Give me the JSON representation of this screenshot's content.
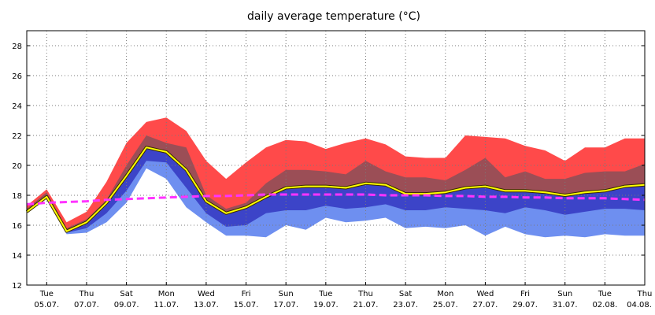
{
  "chart_data": {
    "type": "area",
    "title": "daily average temperature (°C)",
    "xlabel": "",
    "ylabel": "",
    "ylim": [
      12,
      29
    ],
    "yticks": [
      12,
      14,
      16,
      18,
      20,
      22,
      24,
      26,
      28
    ],
    "grid": true,
    "x": [
      "04.07.",
      "05.07.",
      "06.07.",
      "07.07.",
      "08.07.",
      "09.07.",
      "10.07.",
      "11.07.",
      "12.07.",
      "13.07.",
      "14.07.",
      "15.07.",
      "16.07.",
      "17.07.",
      "18.07.",
      "19.07.",
      "20.07.",
      "21.07.",
      "22.07.",
      "23.07.",
      "24.07.",
      "25.07.",
      "26.07.",
      "27.07.",
      "28.07.",
      "29.07.",
      "30.07.",
      "31.07.",
      "01.08.",
      "02.08.",
      "03.08.",
      "04.08."
    ],
    "x_tick_labels": [
      {
        "day": "Tue",
        "date": "05.07."
      },
      {
        "day": "Thu",
        "date": "07.07."
      },
      {
        "day": "Sat",
        "date": "09.07."
      },
      {
        "day": "Mon",
        "date": "11.07."
      },
      {
        "day": "Wed",
        "date": "13.07."
      },
      {
        "day": "Fri",
        "date": "15.07."
      },
      {
        "day": "Sun",
        "date": "17.07."
      },
      {
        "day": "Tue",
        "date": "19.07."
      },
      {
        "day": "Thu",
        "date": "21.07."
      },
      {
        "day": "Sat",
        "date": "23.07."
      },
      {
        "day": "Mon",
        "date": "25.07."
      },
      {
        "day": "Wed",
        "date": "27.07."
      },
      {
        "day": "Fri",
        "date": "29.07."
      },
      {
        "day": "Sun",
        "date": "31.07."
      },
      {
        "day": "Tue",
        "date": "02.08."
      },
      {
        "day": "Thu",
        "date": "04.08."
      }
    ],
    "bands": {
      "min": [
        16.8,
        17.8,
        15.4,
        15.5,
        16.2,
        17.5,
        19.8,
        19.1,
        17.2,
        16.2,
        15.3,
        15.3,
        15.2,
        16.0,
        15.7,
        16.5,
        16.2,
        16.3,
        16.5,
        15.8,
        15.9,
        15.8,
        16.0,
        15.3,
        15.9,
        15.4,
        15.2,
        15.3,
        15.2,
        15.4,
        15.3,
        15.3
      ],
      "p25": [
        16.9,
        17.9,
        15.5,
        15.8,
        16.8,
        18.3,
        20.3,
        20.2,
        18.5,
        16.8,
        15.9,
        16.0,
        16.8,
        17.0,
        17.0,
        17.3,
        17.1,
        17.2,
        17.4,
        17.0,
        17.0,
        17.2,
        17.1,
        17.0,
        16.8,
        17.2,
        17.0,
        16.7,
        16.9,
        17.1,
        17.1,
        17.0
      ],
      "p75": [
        17.1,
        18.2,
        15.8,
        16.4,
        17.7,
        20.0,
        22.0,
        21.5,
        21.2,
        18.0,
        17.1,
        17.5,
        18.8,
        19.7,
        19.7,
        19.6,
        19.4,
        20.3,
        19.6,
        19.2,
        19.2,
        19.0,
        19.7,
        20.5,
        19.2,
        19.6,
        19.1,
        19.1,
        19.5,
        19.6,
        19.6,
        20.1
      ],
      "max": [
        17.3,
        18.4,
        16.2,
        16.9,
        18.9,
        21.5,
        22.9,
        23.2,
        22.3,
        20.3,
        19.1,
        20.2,
        21.2,
        21.7,
        21.6,
        21.1,
        21.5,
        21.8,
        21.4,
        20.6,
        20.5,
        20.5,
        22.0,
        21.9,
        21.8,
        21.3,
        21.0,
        20.3,
        21.2,
        21.2,
        21.8,
        21.8
      ]
    },
    "series": [
      {
        "values": [
          16.9,
          17.9,
          15.6,
          16.2,
          17.5,
          19.3,
          21.2,
          20.9,
          19.7,
          17.6,
          16.8,
          17.2,
          17.9,
          18.5,
          18.6,
          18.6,
          18.5,
          18.8,
          18.7,
          18.1,
          18.1,
          18.2,
          18.5,
          18.6,
          18.3,
          18.3,
          18.2,
          18.0,
          18.2,
          18.3,
          18.6,
          18.7
        ]
      },
      {
        "values": [
          17.4,
          17.5,
          17.55,
          17.6,
          17.7,
          17.75,
          17.8,
          17.85,
          17.9,
          17.95,
          17.95,
          18.0,
          18.05,
          18.05,
          18.05,
          18.05,
          18.05,
          18.05,
          18.0,
          18.0,
          18.0,
          17.95,
          17.95,
          17.9,
          17.9,
          17.85,
          17.85,
          17.8,
          17.8,
          17.8,
          17.75,
          17.7
        ]
      }
    ],
    "colors": {
      "max_band": "#ff4a4a",
      "upper_band": "#9b4e56",
      "lower_band": "#3c44c8",
      "min_band": "#6e8ff0",
      "mean_line": "#ffff00",
      "mean_outline": "#3a2a00",
      "climate_line": "#ff33ff",
      "grid": "#7a7a7a",
      "background": "#ffffff"
    }
  }
}
